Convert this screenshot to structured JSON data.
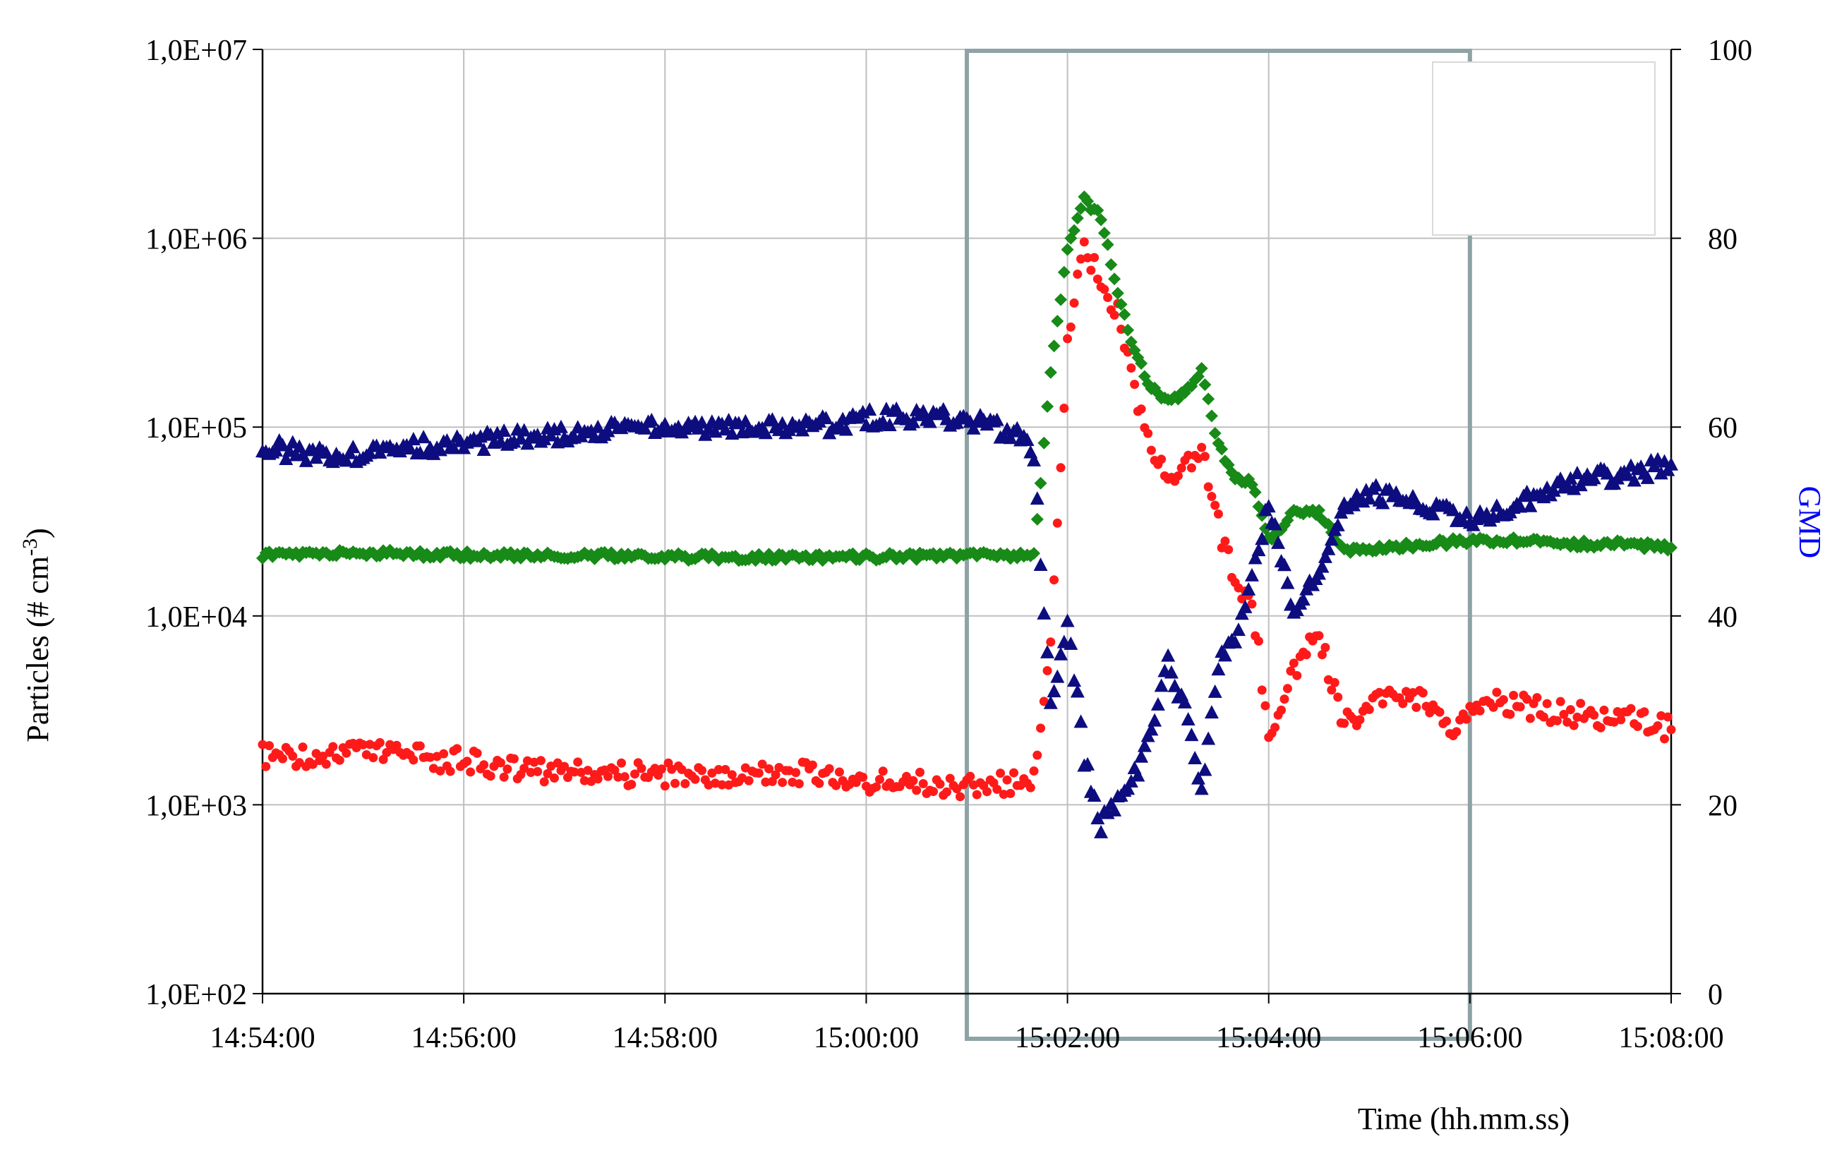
{
  "chart_data": {
    "type": "scatter",
    "xlabel": "Time (hh.mm.ss)",
    "ylabel_left": "Particles  (# cm",
    "ylabel_left_sup": "-3",
    "ylabel_left_end": ")",
    "ylabel_right": "GMD",
    "grid": true,
    "legend": "empty-box-top-right",
    "x_ticks": [
      "14:54:00",
      "14:56:00",
      "14:58:00",
      "15:00:00",
      "15:02:00",
      "15:04:00",
      "15:06:00",
      "15:08:00"
    ],
    "x_range_minutes": [
      0,
      14
    ],
    "y_left": {
      "scale": "log",
      "range": [
        100,
        10000000
      ],
      "ticks": [
        "1,0E+02",
        "1,0E+03",
        "1,0E+04",
        "1,0E+05",
        "1,0E+06",
        "1,0E+07"
      ]
    },
    "y_right": {
      "scale": "linear",
      "range": [
        0,
        100
      ],
      "ticks": [
        "0",
        "20",
        "40",
        "60",
        "80",
        "100"
      ]
    },
    "highlight_region": {
      "x_from": "15:01:00",
      "x_to": "15:06:00",
      "color": "#8ea3a6"
    },
    "series": [
      {
        "axis": "left",
        "marker": "circle",
        "color": "#ff1a1a",
        "points": [
          [
            "14:54:00",
            1800
          ],
          [
            "14:54:30",
            1850
          ],
          [
            "14:55:00",
            1900
          ],
          [
            "14:55:30",
            1800
          ],
          [
            "14:56:00",
            1700
          ],
          [
            "14:56:30",
            1550
          ],
          [
            "14:57:00",
            1500
          ],
          [
            "14:57:30",
            1450
          ],
          [
            "14:58:00",
            1450
          ],
          [
            "14:58:30",
            1450
          ],
          [
            "14:59:00",
            1500
          ],
          [
            "14:59:30",
            1450
          ],
          [
            "15:00:00",
            1350
          ],
          [
            "15:00:30",
            1300
          ],
          [
            "15:01:00",
            1250
          ],
          [
            "15:01:30",
            1300
          ],
          [
            "15:01:40",
            1400
          ],
          [
            "15:01:50",
            8000
          ],
          [
            "15:02:00",
            300000
          ],
          [
            "15:02:10",
            900000
          ],
          [
            "15:02:20",
            600000
          ],
          [
            "15:02:30",
            400000
          ],
          [
            "15:02:40",
            150000
          ],
          [
            "15:02:50",
            80000
          ],
          [
            "15:03:00",
            50000
          ],
          [
            "15:03:10",
            60000
          ],
          [
            "15:03:20",
            80000
          ],
          [
            "15:03:30",
            30000
          ],
          [
            "15:03:40",
            15000
          ],
          [
            "15:03:50",
            12000
          ],
          [
            "15:04:00",
            2500
          ],
          [
            "15:04:15",
            5000
          ],
          [
            "15:04:30",
            8000
          ],
          [
            "15:04:45",
            2600
          ],
          [
            "15:05:00",
            3500
          ],
          [
            "15:05:30",
            3800
          ],
          [
            "15:05:50",
            2500
          ],
          [
            "15:06:00",
            3500
          ],
          [
            "15:06:30",
            3400
          ],
          [
            "15:07:00",
            3000
          ],
          [
            "15:07:30",
            2900
          ],
          [
            "15:08:00",
            2500
          ]
        ]
      },
      {
        "axis": "left",
        "marker": "diamond",
        "color": "#178a17",
        "points": [
          [
            "14:54:00",
            21000
          ],
          [
            "14:55:00",
            21500
          ],
          [
            "14:56:00",
            21000
          ],
          [
            "14:57:00",
            21000
          ],
          [
            "14:58:00",
            20500
          ],
          [
            "14:59:00",
            20500
          ],
          [
            "15:00:00",
            20500
          ],
          [
            "15:01:00",
            21000
          ],
          [
            "15:01:40",
            21000
          ],
          [
            "15:01:50",
            200000
          ],
          [
            "15:02:00",
            900000
          ],
          [
            "15:02:10",
            1600000
          ],
          [
            "15:02:20",
            1300000
          ],
          [
            "15:02:30",
            500000
          ],
          [
            "15:02:40",
            250000
          ],
          [
            "15:02:50",
            160000
          ],
          [
            "15:03:00",
            140000
          ],
          [
            "15:03:10",
            150000
          ],
          [
            "15:03:20",
            200000
          ],
          [
            "15:03:30",
            80000
          ],
          [
            "15:03:40",
            55000
          ],
          [
            "15:03:50",
            50000
          ],
          [
            "15:04:00",
            25000
          ],
          [
            "15:04:15",
            35000
          ],
          [
            "15:04:30",
            35000
          ],
          [
            "15:04:45",
            22000
          ],
          [
            "15:05:00",
            22500
          ],
          [
            "15:05:30",
            24000
          ],
          [
            "15:06:00",
            25000
          ],
          [
            "15:06:30",
            25000
          ],
          [
            "15:07:00",
            24000
          ],
          [
            "15:07:30",
            24000
          ],
          [
            "15:08:00",
            23000
          ]
        ]
      },
      {
        "axis": "right",
        "marker": "triangle",
        "color": "#0d0d80",
        "points": [
          [
            "14:54:00",
            58
          ],
          [
            "14:54:30",
            57
          ],
          [
            "14:55:00",
            57
          ],
          [
            "14:55:30",
            58
          ],
          [
            "14:56:00",
            58
          ],
          [
            "14:56:30",
            59
          ],
          [
            "14:57:00",
            59
          ],
          [
            "14:57:30",
            60
          ],
          [
            "14:58:00",
            60
          ],
          [
            "14:58:30",
            60
          ],
          [
            "14:59:00",
            60
          ],
          [
            "14:59:30",
            60
          ],
          [
            "15:00:00",
            61
          ],
          [
            "15:00:30",
            61
          ],
          [
            "15:01:00",
            61
          ],
          [
            "15:01:30",
            59
          ],
          [
            "15:01:40",
            57
          ],
          [
            "15:01:50",
            30
          ],
          [
            "15:02:00",
            40
          ],
          [
            "15:02:10",
            25
          ],
          [
            "15:02:20",
            18
          ],
          [
            "15:02:30",
            20
          ],
          [
            "15:02:40",
            23
          ],
          [
            "15:02:50",
            28
          ],
          [
            "15:03:00",
            35
          ],
          [
            "15:03:10",
            30
          ],
          [
            "15:03:20",
            22
          ],
          [
            "15:03:30",
            35
          ],
          [
            "15:03:40",
            38
          ],
          [
            "15:03:50",
            44
          ],
          [
            "15:04:00",
            52
          ],
          [
            "15:04:15",
            40
          ],
          [
            "15:04:30",
            45
          ],
          [
            "15:04:45",
            52
          ],
          [
            "15:05:00",
            53
          ],
          [
            "15:05:30",
            52
          ],
          [
            "15:06:00",
            50
          ],
          [
            "15:06:30",
            52
          ],
          [
            "15:07:00",
            54
          ],
          [
            "15:07:30",
            55
          ],
          [
            "15:08:00",
            56
          ]
        ]
      }
    ]
  }
}
